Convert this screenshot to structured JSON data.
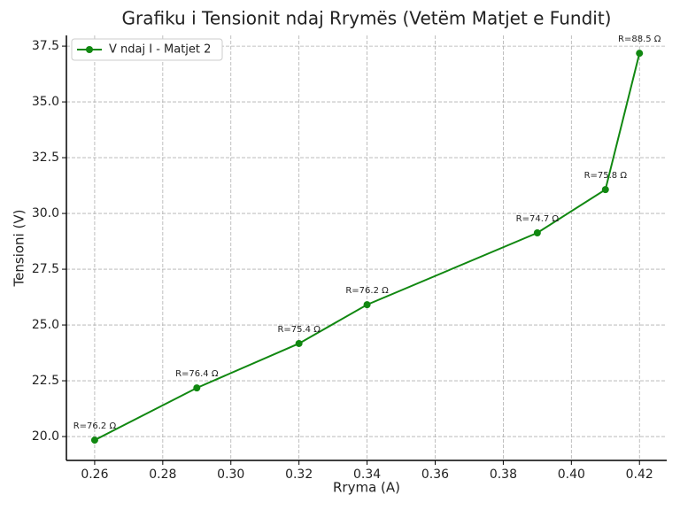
{
  "chart_data": {
    "type": "line",
    "title": "Grafiku i Tensionit ndaj Rrymës (Vetëm Matjet e Fundit)",
    "x_label": "Rryma (A)",
    "y_label": "Tensioni (V)",
    "x": [
      0.26,
      0.29,
      0.32,
      0.34,
      0.39,
      0.41,
      0.42
    ],
    "series": [
      {
        "name": "V ndaj I - Matjet 2",
        "color": "#118811",
        "values": [
          19.84,
          22.18,
          24.17,
          25.91,
          29.13,
          31.07,
          37.18
        ]
      }
    ],
    "annotations": [
      "R=76.2 Ω",
      "R=76.4 Ω",
      "R=75.4 Ω",
      "R=76.2 Ω",
      "R=74.7 Ω",
      "R=75.8 Ω",
      "R=88.5 Ω"
    ],
    "xlim": [
      0.2517,
      0.428
    ],
    "ylim": [
      18.93,
      37.98
    ],
    "xticks": [
      {
        "value": 0.26,
        "label": "0.26"
      },
      {
        "value": 0.28,
        "label": "0.28"
      },
      {
        "value": 0.3,
        "label": "0.30"
      },
      {
        "value": 0.32,
        "label": "0.32"
      },
      {
        "value": 0.34,
        "label": "0.34"
      },
      {
        "value": 0.36,
        "label": "0.36"
      },
      {
        "value": 0.38,
        "label": "0.38"
      },
      {
        "value": 0.4,
        "label": "0.40"
      },
      {
        "value": 0.42,
        "label": "0.42"
      }
    ],
    "yticks": [
      {
        "value": 20,
        "label": "20.0"
      },
      22.5,
      {
        "value": 25,
        "label": "25.0"
      },
      27.5,
      {
        "value": 30,
        "label": "30.0"
      },
      32.5,
      {
        "value": 35,
        "label": "35.0"
      },
      37.5
    ],
    "grid": true,
    "legend": "upper-left"
  }
}
